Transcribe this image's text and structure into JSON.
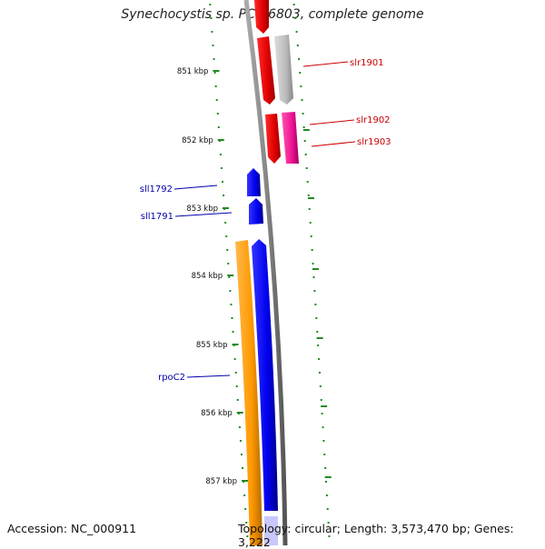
{
  "title": "Synechocystis sp. PCC 6803, complete genome",
  "footer": {
    "accession": "Accession: NC_000911",
    "topology": "Topology: circular; Length: 3,573,470 bp; Genes: 3,222"
  },
  "ticks": [
    {
      "label": "851 kbp"
    },
    {
      "label": "852 kbp"
    },
    {
      "label": "853 kbp"
    },
    {
      "label": "854 kbp"
    },
    {
      "label": "855 kbp"
    },
    {
      "label": "856 kbp"
    },
    {
      "label": "857 kbp"
    }
  ],
  "genes": [
    {
      "name": "slr1901",
      "color": "#cc0000"
    },
    {
      "name": "slr1902",
      "color": "#cc0000"
    },
    {
      "name": "slr1903",
      "color": "#cc0000"
    },
    {
      "name": "sll1792",
      "color": "#0000aa"
    },
    {
      "name": "sll1791",
      "color": "#0000aa"
    },
    {
      "name": "rpoC2",
      "color": "#0000aa"
    }
  ],
  "colors": {
    "backbone": "#888888",
    "tick_marks": "#228b22",
    "forward_gene": "#ee0000",
    "forward_gene_pink": "#ee1493",
    "forward_gene_gray": "#bbbbbb",
    "reverse_gene": "#0000ee",
    "orange_feature": "#ff9900"
  }
}
